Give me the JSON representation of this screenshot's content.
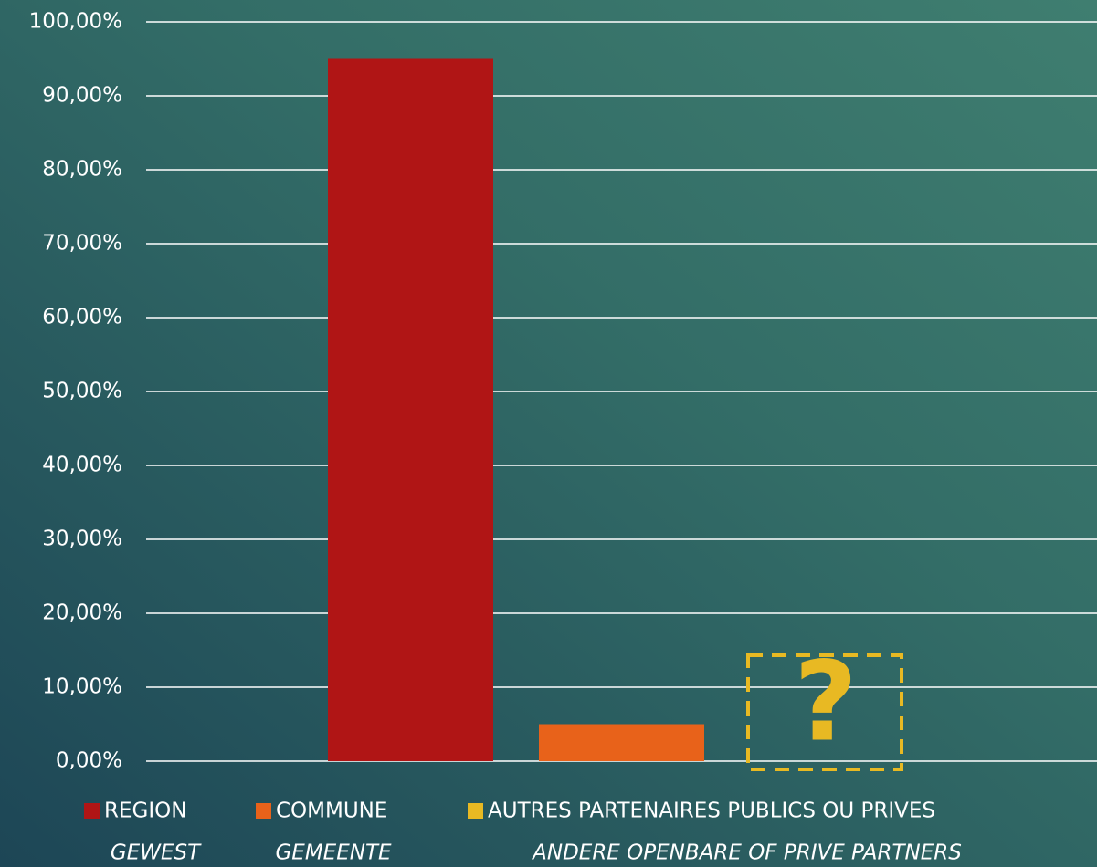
{
  "chart_data": {
    "type": "bar",
    "categories": [
      null
    ],
    "series": [
      {
        "name": "REGION",
        "subname": "GEWEST",
        "color": "#b01515",
        "values": [
          95
        ]
      },
      {
        "name": "COMMUNE",
        "subname": "GEMEENTE",
        "color": "#e8621a",
        "values": [
          5
        ]
      },
      {
        "name": "AUTRES PARTENAIRES PUBLICS OU PRIVES",
        "subname": "ANDERE OPENBARE OF PRIVE PARTNERS",
        "color": "#e8b923",
        "values": [
          null
        ]
      }
    ],
    "annotation": "?",
    "ylim": [
      0,
      100
    ],
    "yticks": [
      {
        "value": 0,
        "label": "0,00%"
      },
      {
        "value": 10,
        "label": "10,00%"
      },
      {
        "value": 20,
        "label": "20,00%"
      },
      {
        "value": 30,
        "label": "30,00%"
      },
      {
        "value": 40,
        "label": "40,00%"
      },
      {
        "value": 50,
        "label": "50,00%"
      },
      {
        "value": 60,
        "label": "60,00%"
      },
      {
        "value": 70,
        "label": "70,00%"
      },
      {
        "value": 80,
        "label": "80,00%"
      },
      {
        "value": 90,
        "label": "90,00%"
      },
      {
        "value": 100,
        "label": "100,00%"
      }
    ],
    "grid": true,
    "legend": "bottom"
  }
}
